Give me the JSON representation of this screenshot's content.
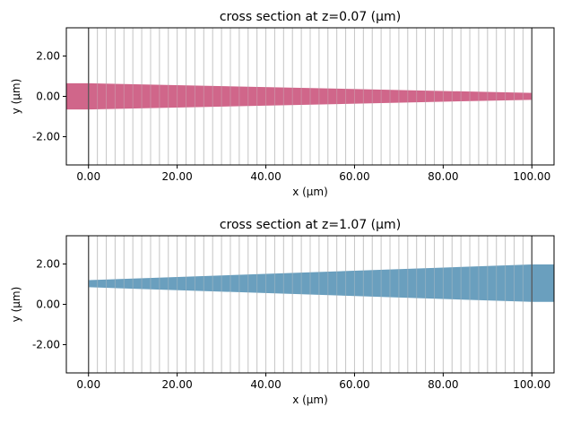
{
  "chart_data": [
    {
      "type": "area",
      "title": "cross section at z=0.07 (μm)",
      "xlabel": "x (μm)",
      "ylabel": "y (μm)",
      "xlim": [
        -5,
        105
      ],
      "ylim": [
        -3.4,
        3.4
      ],
      "xticks": [
        0,
        20,
        40,
        60,
        80,
        100
      ],
      "yticks": [
        -2,
        0,
        2
      ],
      "xtick_labels": [
        "0.00",
        "20.00",
        "40.00",
        "60.00",
        "80.00",
        "100.00"
      ],
      "ytick_labels": [
        "-2.00",
        "0.00",
        "2.00"
      ],
      "fill_color": "#d0668a",
      "grid": false,
      "vertical_lines": {
        "x_start": 0,
        "x_end": 100,
        "count": 51,
        "color": "#c8c8c8",
        "edge_color": "#555555"
      },
      "shape": {
        "x": [
          -5,
          0,
          100,
          100,
          0,
          -5
        ],
        "y": [
          0.65,
          0.65,
          0.17,
          -0.17,
          -0.65,
          -0.65
        ]
      }
    },
    {
      "type": "area",
      "title": "cross section at z=1.07 (μm)",
      "xlabel": "x (μm)",
      "ylabel": "y (μm)",
      "xlim": [
        -5,
        105
      ],
      "ylim": [
        -3.4,
        3.4
      ],
      "xticks": [
        0,
        20,
        40,
        60,
        80,
        100
      ],
      "yticks": [
        -2,
        0,
        2
      ],
      "xtick_labels": [
        "0.00",
        "20.00",
        "40.00",
        "60.00",
        "80.00",
        "100.00"
      ],
      "ytick_labels": [
        "-2.00",
        "0.00",
        "2.00"
      ],
      "fill_color": "#6a9fbe",
      "grid": false,
      "vertical_lines": {
        "x_start": 0,
        "x_end": 100,
        "count": 51,
        "color": "#c8c8c8",
        "edge_color": "#555555"
      },
      "shape": {
        "x": [
          0,
          100,
          105,
          105,
          100,
          0
        ],
        "y": [
          1.2,
          1.98,
          1.98,
          0.12,
          0.12,
          0.85
        ]
      }
    }
  ]
}
